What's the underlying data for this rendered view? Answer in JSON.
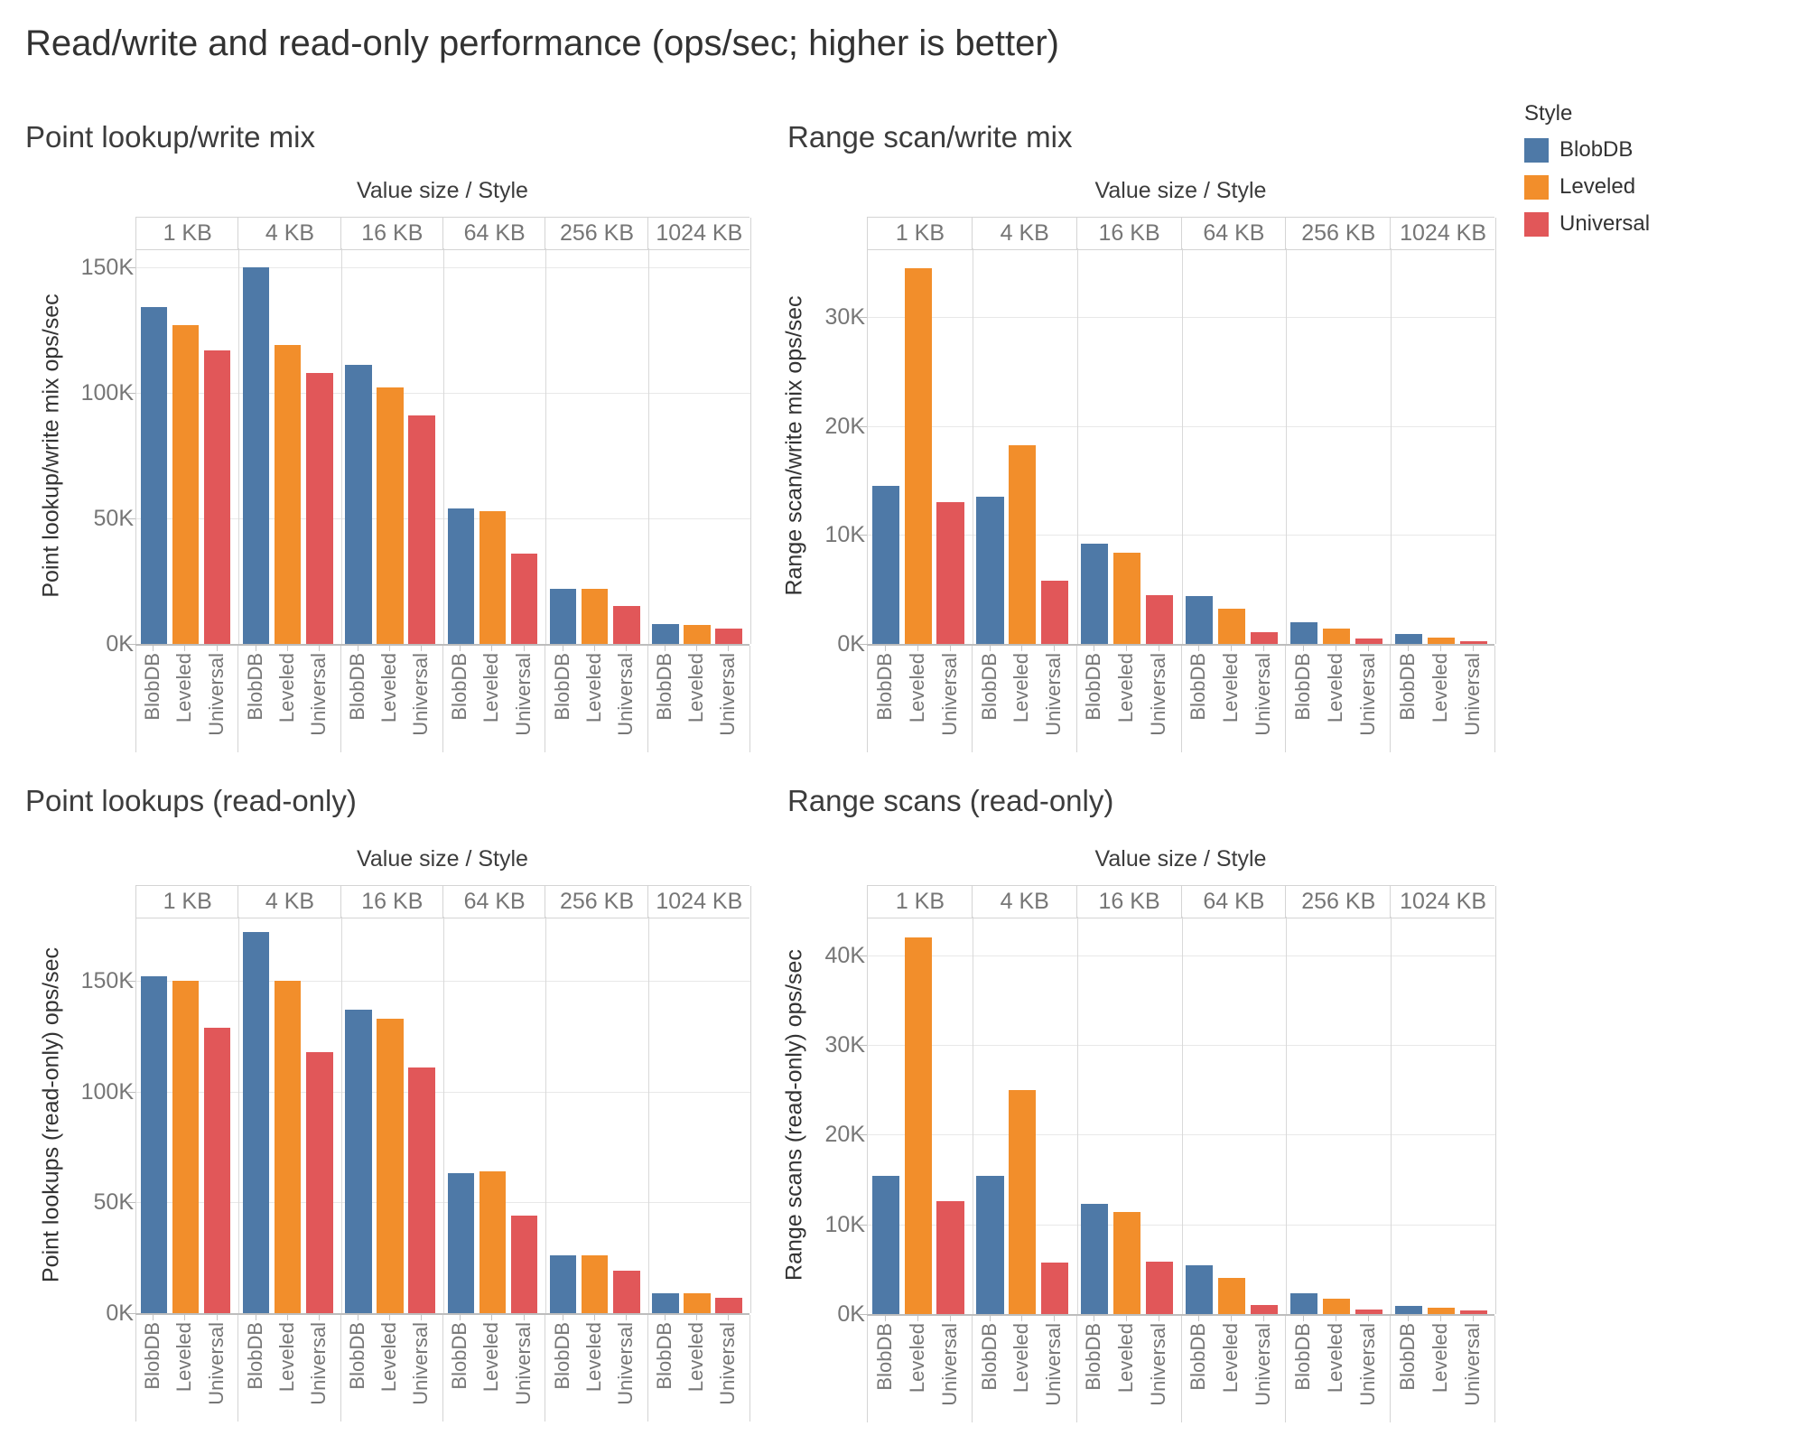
{
  "page_title": "Read/write and read-only performance (ops/sec; higher is better)",
  "column_header_title": "Value size / Style",
  "legend": {
    "title": "Style",
    "items": [
      {
        "label": "BlobDB",
        "color": "#4E79A7"
      },
      {
        "label": "Leveled",
        "color": "#F28E2B"
      },
      {
        "label": "Universal",
        "color": "#E15759"
      }
    ]
  },
  "chart_data": [
    {
      "id": "point-lookup-write-mix",
      "type": "bar",
      "title": "Point lookup/write mix",
      "ylabel": "Point lookup/write mix ops/sec",
      "xlabel": "Value size / Style",
      "categories": [
        "1 KB",
        "4 KB",
        "16 KB",
        "64 KB",
        "256 KB",
        "1024 KB"
      ],
      "series": [
        {
          "name": "BlobDB",
          "values": [
            134000,
            150000,
            111000,
            54000,
            22000,
            8000
          ]
        },
        {
          "name": "Leveled",
          "values": [
            127000,
            119000,
            102000,
            53000,
            22000,
            7500
          ]
        },
        {
          "name": "Universal",
          "values": [
            117000,
            108000,
            91000,
            36000,
            15000,
            6000
          ]
        }
      ],
      "ylim": [
        0,
        157500
      ],
      "grid": true,
      "y_ticks": [
        {
          "value": 0,
          "label": "0K"
        },
        {
          "value": 50000,
          "label": "50K"
        },
        {
          "value": 100000,
          "label": "100K"
        },
        {
          "value": 150000,
          "label": "150K"
        }
      ]
    },
    {
      "id": "range-scan-write-mix",
      "type": "bar",
      "title": "Range scan/write mix",
      "ylabel": "Range scan/write mix ops/sec",
      "xlabel": "Value size / Style",
      "categories": [
        "1 KB",
        "4 KB",
        "16 KB",
        "64 KB",
        "256 KB",
        "1024 KB"
      ],
      "series": [
        {
          "name": "BlobDB",
          "values": [
            14500,
            13500,
            9200,
            4400,
            2000,
            900
          ]
        },
        {
          "name": "Leveled",
          "values": [
            34500,
            18200,
            8400,
            3200,
            1400,
            600
          ]
        },
        {
          "name": "Universal",
          "values": [
            13000,
            5800,
            4500,
            1100,
            500,
            250
          ]
        }
      ],
      "ylim": [
        0,
        36300
      ],
      "grid": true,
      "y_ticks": [
        {
          "value": 0,
          "label": "0K"
        },
        {
          "value": 10000,
          "label": "10K"
        },
        {
          "value": 20000,
          "label": "20K"
        },
        {
          "value": 30000,
          "label": "30K"
        }
      ]
    },
    {
      "id": "point-lookups-read-only",
      "type": "bar",
      "title": "Point lookups (read-only)",
      "ylabel": "Point lookups (read-only) ops/sec",
      "xlabel": "Value size / Style",
      "categories": [
        "1 KB",
        "4 KB",
        "16 KB",
        "64 KB",
        "256 KB",
        "1024 KB"
      ],
      "series": [
        {
          "name": "BlobDB",
          "values": [
            152000,
            172000,
            137000,
            63000,
            26000,
            9000
          ]
        },
        {
          "name": "Leveled",
          "values": [
            150000,
            150000,
            133000,
            64000,
            26000,
            9000
          ]
        },
        {
          "name": "Universal",
          "values": [
            129000,
            118000,
            111000,
            44000,
            19000,
            7000
          ]
        }
      ],
      "ylim": [
        0,
        179000
      ],
      "grid": true,
      "y_ticks": [
        {
          "value": 0,
          "label": "0K"
        },
        {
          "value": 50000,
          "label": "50K"
        },
        {
          "value": 100000,
          "label": "100K"
        },
        {
          "value": 150000,
          "label": "150K"
        }
      ]
    },
    {
      "id": "range-scans-read-only",
      "type": "bar",
      "title": "Range scans (read-only)",
      "ylabel": "Range scans (read-only) ops/sec",
      "xlabel": "Value size / Style",
      "categories": [
        "1 KB",
        "4 KB",
        "16 KB",
        "64 KB",
        "256 KB",
        "1024 KB"
      ],
      "series": [
        {
          "name": "BlobDB",
          "values": [
            15400,
            15400,
            12300,
            5400,
            2300,
            900
          ]
        },
        {
          "name": "Leveled",
          "values": [
            42000,
            25000,
            11400,
            4000,
            1700,
            700
          ]
        },
        {
          "name": "Universal",
          "values": [
            12600,
            5700,
            5800,
            1000,
            500,
            400
          ]
        }
      ],
      "ylim": [
        0,
        44300
      ],
      "grid": true,
      "y_ticks": [
        {
          "value": 0,
          "label": "0K"
        },
        {
          "value": 10000,
          "label": "10K"
        },
        {
          "value": 20000,
          "label": "20K"
        },
        {
          "value": 30000,
          "label": "30K"
        },
        {
          "value": 40000,
          "label": "40K"
        }
      ]
    }
  ]
}
